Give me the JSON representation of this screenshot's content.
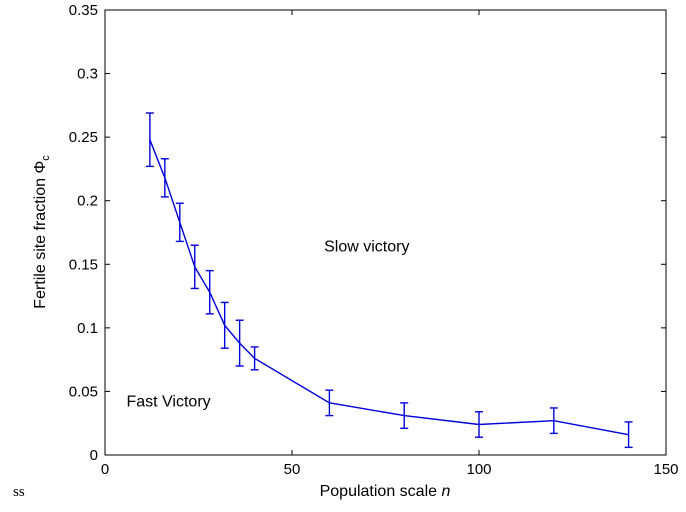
{
  "chart_data": {
    "type": "line",
    "title": "",
    "xlabel": "Population scale",
    "xlabel_var": "n",
    "ylabel": "Fertile site fraction Φ",
    "ylabel_sub": "c",
    "xlim": [
      0,
      150
    ],
    "ylim": [
      0,
      0.35
    ],
    "xticks": [
      "0",
      "50",
      "100",
      "150"
    ],
    "yticks": [
      "0",
      "0.05",
      "0.1",
      "0.15",
      "0.2",
      "0.25",
      "0.3",
      "0.35"
    ],
    "grid": false,
    "series": [
      {
        "color": "#0000dd",
        "x": [
          12,
          16,
          20,
          24,
          28,
          32,
          36,
          40,
          60,
          80,
          100,
          120,
          140
        ],
        "y": [
          0.248,
          0.218,
          0.183,
          0.148,
          0.128,
          0.102,
          0.088,
          0.076,
          0.041,
          0.031,
          0.024,
          0.027,
          0.016
        ],
        "err": [
          0.021,
          0.015,
          0.015,
          0.017,
          0.017,
          0.018,
          0.018,
          0.009,
          0.01,
          0.01,
          0.01,
          0.01,
          0.01
        ]
      }
    ],
    "annotations": [
      {
        "text": "Slow victory",
        "x": 70,
        "y": 0.16
      },
      {
        "text": "Fast Victory",
        "x": 17,
        "y": 0.038
      }
    ]
  },
  "stray_text": "ss"
}
